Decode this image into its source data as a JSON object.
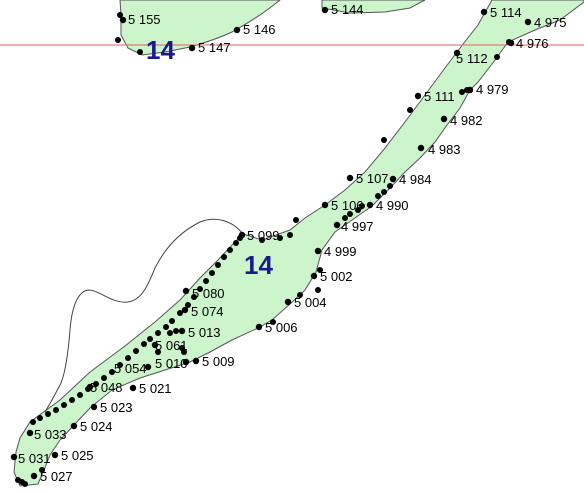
{
  "colors": {
    "parcel_fill": "#ccf5cc",
    "parcel_stroke": "#555555",
    "line_red": "#e06060",
    "outline": "#444444",
    "point": "#000000",
    "zone_label": "#1a1a8c"
  },
  "zones": [
    {
      "id": "zone-upper",
      "label": "14"
    },
    {
      "id": "zone-lower",
      "label": "14"
    }
  ],
  "points": [
    {
      "id": "p5155",
      "label": "5 155"
    },
    {
      "id": "p5146",
      "label": "5 146"
    },
    {
      "id": "p5147",
      "label": "5 147"
    },
    {
      "id": "p5144",
      "label": "5 144"
    },
    {
      "id": "p5114",
      "label": "5 114"
    },
    {
      "id": "p4975",
      "label": "4 975"
    },
    {
      "id": "p4976",
      "label": "4 976"
    },
    {
      "id": "p5112",
      "label": "5 112"
    },
    {
      "id": "p5111",
      "label": "5 111"
    },
    {
      "id": "p4979",
      "label": "4 979"
    },
    {
      "id": "p4982",
      "label": "4 982"
    },
    {
      "id": "p4983",
      "label": "4 983"
    },
    {
      "id": "p5107",
      "label": "5 107"
    },
    {
      "id": "p4984",
      "label": "4 984"
    },
    {
      "id": "p5106",
      "label": "5 106"
    },
    {
      "id": "p4990",
      "label": "4 990"
    },
    {
      "id": "p4997",
      "label": "4 997"
    },
    {
      "id": "p5099",
      "label": "5 099"
    },
    {
      "id": "p4999",
      "label": "4 999"
    },
    {
      "id": "p5002",
      "label": "5 002"
    },
    {
      "id": "p5080",
      "label": "5 080"
    },
    {
      "id": "p5004",
      "label": "5 004"
    },
    {
      "id": "p5074",
      "label": "5 074"
    },
    {
      "id": "p5006",
      "label": "5 006"
    },
    {
      "id": "p5013",
      "label": "5 013"
    },
    {
      "id": "p5061",
      "label": "5 061"
    },
    {
      "id": "p5010",
      "label": "5 010"
    },
    {
      "id": "p5009",
      "label": "5 009"
    },
    {
      "id": "p5054",
      "label": "5 054"
    },
    {
      "id": "p5048",
      "label": "5 048"
    },
    {
      "id": "p5021",
      "label": "5 021"
    },
    {
      "id": "p5023",
      "label": "5 023"
    },
    {
      "id": "p5024",
      "label": "5 024"
    },
    {
      "id": "p5033",
      "label": "5 033"
    },
    {
      "id": "p5031",
      "label": "5 031"
    },
    {
      "id": "p5025",
      "label": "5 025"
    },
    {
      "id": "p5027",
      "label": "5 027"
    }
  ]
}
